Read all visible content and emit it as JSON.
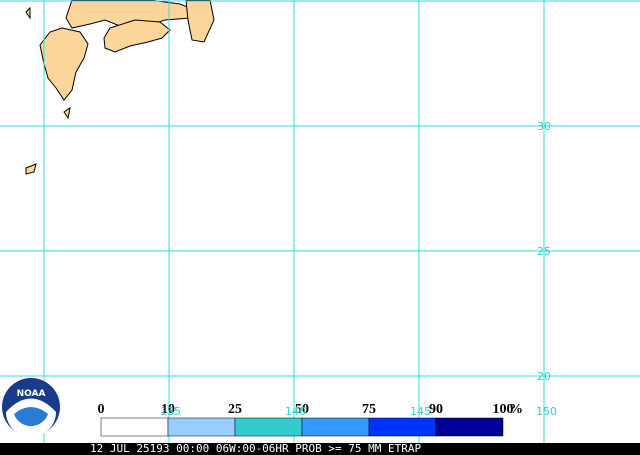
{
  "map": {
    "lat_labels": [
      "30",
      "25",
      "20"
    ],
    "lon_labels": [
      "135",
      "140",
      "145",
      "150"
    ]
  },
  "legend": {
    "ticks": [
      "0",
      "10",
      "25",
      "50",
      "75",
      "90",
      "100"
    ],
    "unit": "%",
    "colors": [
      "#ffffff",
      "#99ccff",
      "#33cccc",
      "#3399ff",
      "#0033ff",
      "#000099"
    ]
  },
  "footer": "12 JUL 25193 00:00 06W:00-06HR PROB >= 75 MM ETRAP"
}
